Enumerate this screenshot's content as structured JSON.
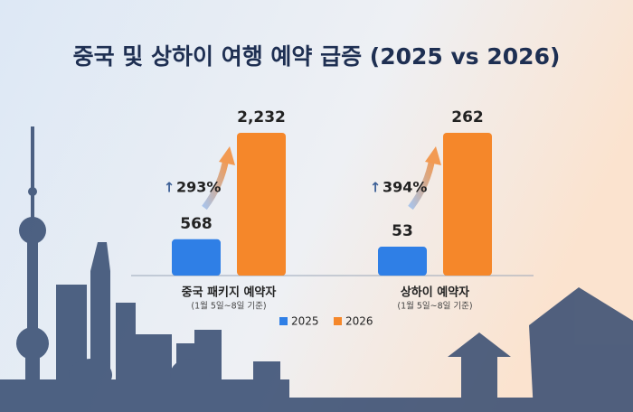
{
  "title": "중국 및 상하이 여행 예약 급증 (2025 vs 2026)",
  "chart_data": [
    {
      "type": "bar",
      "title": "중국 패키지 예약자",
      "subtitle": "(1월 5일~8일 기준)",
      "annotation": "293%",
      "series": [
        {
          "name": "2025",
          "color": "#2f7fe6",
          "values": [
            568
          ]
        },
        {
          "name": "2026",
          "color": "#f5872a",
          "values": [
            2232
          ],
          "value_labels": [
            "2,232"
          ]
        }
      ]
    },
    {
      "type": "bar",
      "title": "상하이 예약자",
      "subtitle": "(1월 5일~8일 기준)",
      "annotation": "394%",
      "series": [
        {
          "color": "#2f7fe6",
          "values": [
            53
          ]
        },
        {
          "color": "#f5872a",
          "values": [
            262
          ]
        }
      ]
    }
  ]
}
